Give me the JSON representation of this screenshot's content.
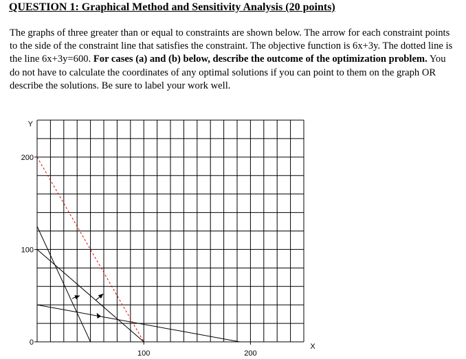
{
  "document": {
    "title": "QUESTION 1: Graphical Method and Sensitivity Analysis (20 points)",
    "paragraph": {
      "intro": "The graphs of three greater than or equal to constraints are shown below. The arrow for each constraint points to the side of the constraint line that satisfies the constraint.  The objective function is 6x+3y.  The dotted line is the line 6x+3y=600.  ",
      "bold": "For cases (a) and (b) below, describe the outcome of the optimization problem.",
      "rest": " You do not have to calculate the coordinates of any optimal solutions if you can point to them on the graph OR describe the solutions. Be sure to label your work well."
    }
  },
  "chart_data": {
    "type": "line",
    "xlabel": "X",
    "ylabel": "Y",
    "xlim": [
      0,
      250
    ],
    "ylim": [
      0,
      240
    ],
    "grid": true,
    "x_ticks": [
      {
        "value": 100,
        "label": "100"
      },
      {
        "value": 200,
        "label": "200"
      }
    ],
    "y_ticks": [
      {
        "value": 0,
        "label": "0"
      },
      {
        "value": 100,
        "label": "100"
      },
      {
        "value": 200,
        "label": "200"
      }
    ],
    "series": [
      {
        "points": [
          [
            0,
            125
          ],
          [
            50,
            0
          ]
        ],
        "style": "solid",
        "arrow": {
          "at": [
            33,
            47
          ],
          "toward": [
            40,
            50
          ]
        }
      },
      {
        "points": [
          [
            0,
            100
          ],
          [
            100,
            0
          ]
        ],
        "style": "solid",
        "arrow": {
          "at": [
            55,
            45
          ],
          "toward": [
            62,
            52
          ]
        }
      },
      {
        "points": [
          [
            0,
            40
          ],
          [
            190,
            0
          ]
        ],
        "style": "solid",
        "arrow": {
          "at": [
            58,
            27
          ],
          "toward": [
            56,
            31
          ]
        }
      },
      {
        "points": [
          [
            0,
            200
          ],
          [
            100,
            0
          ]
        ],
        "style": "dotted",
        "color": "#e00000"
      }
    ]
  }
}
